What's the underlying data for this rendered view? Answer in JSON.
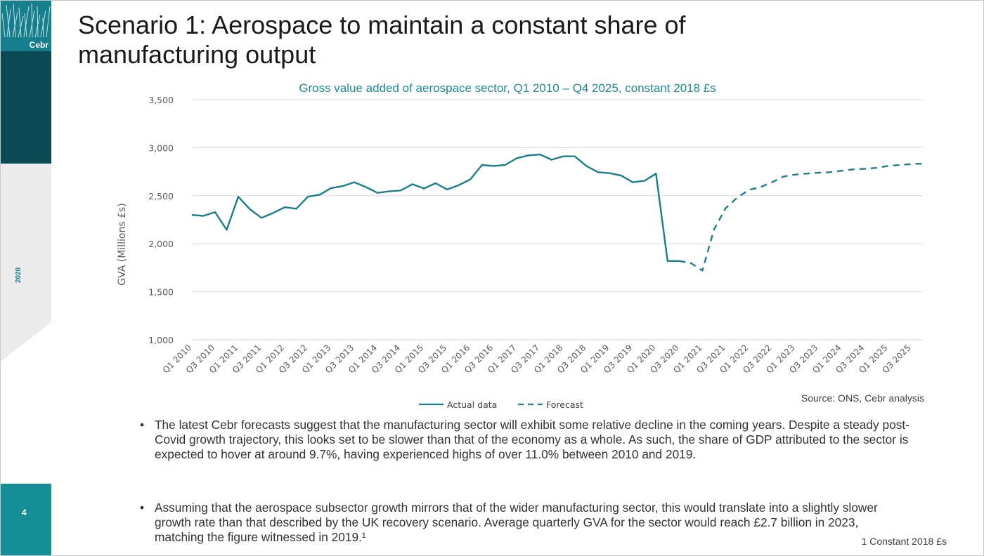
{
  "slide": {
    "logo_text": "Cebr",
    "year": "2020",
    "page_number": "4",
    "title": "Scenario 1: Aerospace to maintain a constant share of manufacturing output",
    "bullets": [
      "The latest Cebr forecasts suggest that the manufacturing sector will exhibit some relative decline in the coming years. Despite a steady post-Covid growth trajectory, this looks set to be slower than that of the economy as a whole. As such, the share of GDP attributed to the sector is expected to hover at around 9.7%, having experienced highs of over 11.0% between 2010 and 2019.",
      "Assuming that the aerospace subsector growth mirrors that of the wider manufacturing sector, this would translate into a slightly slower growth rate than that described by the UK recovery scenario. Average quarterly GVA for the sector would reach £2.7 billion in 2023, matching the figure witnessed in 2019.¹"
    ],
    "bullet_symbol": "•",
    "footnote": "1 Constant 2018 £s",
    "colors": {
      "teal": "#157f8c",
      "dark_teal": "#0b4a52",
      "line": "#1a7f8c"
    }
  },
  "chart_data": {
    "type": "line",
    "title": "Gross value added of aerospace sector, Q1 2010 – Q4 2025, constant 2018 £s",
    "ylabel": "GVA (Millions £s)",
    "ylim": [
      1000,
      3500
    ],
    "yticks": [
      "1,000",
      "1,500",
      "2,000",
      "2,500",
      "3,000",
      "3,500"
    ],
    "ytick_values": [
      1000,
      1500,
      2000,
      2500,
      3000,
      3500
    ],
    "xtick_labels": [
      "Q1 2010",
      "Q3 2010",
      "Q1 2011",
      "Q3 2011",
      "Q1 2012",
      "Q3 2012",
      "Q1 2013",
      "Q3 2013",
      "Q1 2014",
      "Q3 2014",
      "Q1 2015",
      "Q3 2015",
      "Q1 2016",
      "Q3 2016",
      "Q1 2017",
      "Q3 2017",
      "Q1 2018",
      "Q3 2018",
      "Q1 2019",
      "Q3 2019",
      "Q1 2020",
      "Q3 2020",
      "Q1 2021",
      "Q3 2021",
      "Q1 2022",
      "Q3 2022",
      "Q1 2023",
      "Q3 2023",
      "Q1 2024",
      "Q3 2024",
      "Q1 2025",
      "Q3 2025"
    ],
    "grid": true,
    "legend_position": "bottom",
    "source": "Source: ONS, Cebr analysis",
    "series": [
      {
        "name": "Actual data",
        "style": "solid",
        "start_index": 0,
        "values": [
          2300,
          2290,
          2330,
          2145,
          2490,
          2360,
          2270,
          2320,
          2380,
          2365,
          2490,
          2510,
          2580,
          2600,
          2640,
          2590,
          2530,
          2545,
          2555,
          2620,
          2575,
          2630,
          2565,
          2610,
          2670,
          2820,
          2810,
          2820,
          2890,
          2920,
          2930,
          2875,
          2910,
          2910,
          2810,
          2745,
          2735,
          2710,
          2640,
          2655,
          2730,
          1820,
          1820
        ]
      },
      {
        "name": "Forecast",
        "style": "dashed",
        "start_index": 42,
        "values": [
          1820,
          1800,
          1720,
          2150,
          2370,
          2480,
          2560,
          2590,
          2640,
          2700,
          2720,
          2730,
          2740,
          2745,
          2760,
          2775,
          2780,
          2790,
          2810,
          2820,
          2830,
          2835
        ]
      }
    ]
  }
}
